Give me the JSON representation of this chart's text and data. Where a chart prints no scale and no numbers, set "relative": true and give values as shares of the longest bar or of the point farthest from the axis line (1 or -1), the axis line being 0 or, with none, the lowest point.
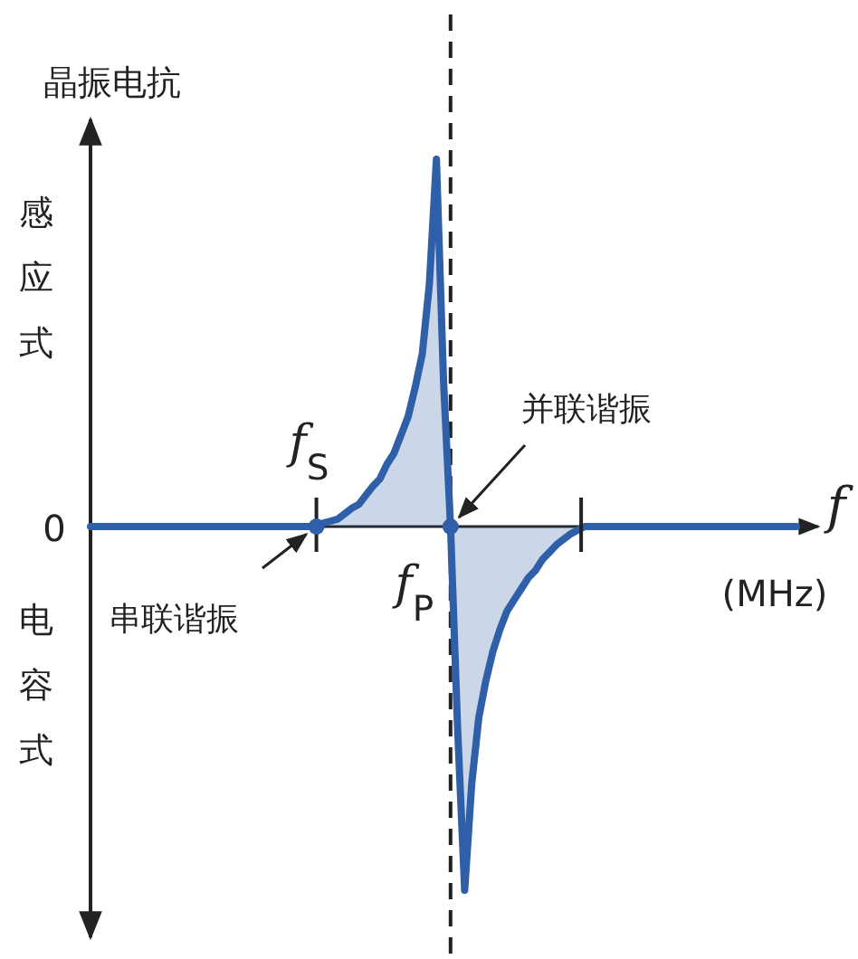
{
  "chart_data": {
    "type": "area",
    "relative": true,
    "xlabel": "f",
    "ylabel": "晶振电抗",
    "color": "#2e5fa8",
    "categories": [
      null,
      null,
      null,
      null,
      null,
      null,
      null,
      null,
      null,
      null,
      null,
      null,
      null,
      null,
      null,
      null,
      null,
      null,
      null,
      null,
      null,
      null,
      null,
      null,
      null,
      null,
      null,
      null,
      null,
      null,
      null,
      null,
      null,
      null,
      null,
      null,
      null,
      null,
      null,
      null,
      null,
      null,
      null,
      null,
      null,
      null,
      null,
      null,
      null,
      null,
      null,
      null,
      null,
      null,
      null,
      null,
      null,
      null,
      null,
      null,
      null,
      null,
      null,
      null,
      null,
      null,
      null,
      null,
      null,
      null,
      null,
      null,
      null,
      null,
      null,
      null,
      null,
      null,
      null,
      null,
      null,
      null,
      null,
      null,
      null,
      null,
      null,
      null,
      null,
      null,
      null,
      null,
      null,
      null,
      null,
      null,
      null,
      null,
      null,
      null,
      null
    ],
    "values": [
      0,
      0,
      0,
      0,
      0,
      0,
      0,
      0,
      0,
      0,
      0,
      0,
      0,
      0,
      0,
      0,
      0,
      0,
      0,
      0,
      0,
      0,
      0,
      0,
      0,
      0,
      0,
      0,
      0,
      0,
      0,
      0,
      0,
      0.01,
      0.015,
      0.02,
      0.035,
      0.05,
      0.06,
      0.085,
      0.11,
      0.13,
      0.17,
      0.2,
      0.25,
      0.3,
      0.38,
      0.47,
      0.66,
      1,
      0.4,
      0,
      -0.55,
      -0.99,
      -0.7,
      -0.52,
      -0.42,
      -0.34,
      -0.28,
      -0.23,
      -0.2,
      -0.17,
      -0.14,
      -0.12,
      -0.09,
      -0.07,
      -0.05,
      -0.035,
      -0.02,
      -0.01,
      0,
      0,
      0,
      0,
      0,
      0,
      0,
      0,
      0,
      0,
      0,
      0,
      0,
      0,
      0,
      0,
      0,
      0,
      0,
      0,
      0,
      0,
      0,
      0,
      0,
      0,
      0,
      0,
      0,
      0,
      0
    ],
    "annotations": [
      "0",
      "(MHz)",
      "感应式",
      "电容式",
      "f$_{S}$",
      "f$_{P}$",
      "串联谐振",
      "并联谐振"
    ]
  }
}
